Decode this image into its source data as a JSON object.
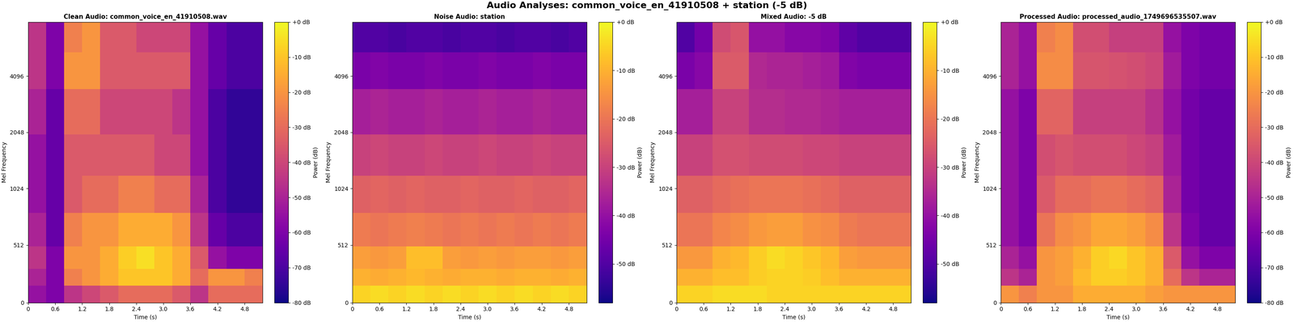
{
  "title": "Audio Analyses: common_voice_en_41910508 + station (-5 dB)",
  "chart_data": [
    {
      "type": "spectrogram",
      "title": "Clean Audio: common_voice_en_41910508.wav",
      "x_label": "Time (s)",
      "y_label": "Mel Frequency",
      "log": "y",
      "xlim": [
        0,
        5.2
      ],
      "xticks": [
        0,
        0.6,
        1.2,
        1.8,
        2.4,
        3.0,
        3.6,
        4.2,
        4.8
      ],
      "ylim": [
        0,
        8000
      ],
      "yticks": [
        0,
        512,
        1024,
        2048,
        4096
      ],
      "time_edges": [
        0,
        0.4,
        0.8,
        1.2,
        1.6,
        2.0,
        2.4,
        2.8,
        3.2,
        3.6,
        4.0,
        4.4,
        4.8,
        5.2
      ],
      "freq_edges": [
        0,
        150,
        300,
        500,
        800,
        1200,
        2000,
        3500,
        5500,
        8000
      ],
      "cells": [
        [
          -55,
          -60,
          -45,
          -40,
          -35,
          -30,
          -30,
          -30,
          -35,
          -45,
          -30,
          -30,
          -30
        ],
        [
          -50,
          -60,
          -25,
          -20,
          -15,
          -10,
          -10,
          -10,
          -15,
          -30,
          -20,
          -20,
          -25
        ],
        [
          -45,
          -60,
          -20,
          -20,
          -15,
          -8,
          -5,
          -10,
          -15,
          -35,
          -55,
          -60,
          -60
        ],
        [
          -50,
          -65,
          -25,
          -20,
          -20,
          -15,
          -15,
          -15,
          -20,
          -45,
          -65,
          -70,
          -70
        ],
        [
          -55,
          -65,
          -35,
          -30,
          -30,
          -25,
          -25,
          -30,
          -30,
          -50,
          -70,
          -75,
          -75
        ],
        [
          -55,
          -65,
          -35,
          -35,
          -35,
          -35,
          -35,
          -40,
          -40,
          -55,
          -70,
          -75,
          -75
        ],
        [
          -50,
          -65,
          -30,
          -30,
          -40,
          -40,
          -40,
          -40,
          -45,
          -55,
          -70,
          -75,
          -75
        ],
        [
          -45,
          -60,
          -20,
          -20,
          -35,
          -35,
          -35,
          -35,
          -35,
          -55,
          -65,
          -70,
          -70
        ],
        [
          -45,
          -60,
          -25,
          -20,
          -35,
          -35,
          -40,
          -40,
          -40,
          -55,
          -65,
          -70,
          -70
        ]
      ],
      "colorbar_label": "Power (dB)",
      "clim": [
        -80,
        0
      ],
      "colorbar_ticks": [
        {
          "value": 0,
          "label": "+0 dB"
        },
        {
          "value": -10,
          "label": "-10 dB"
        },
        {
          "value": -20,
          "label": "-20 dB"
        },
        {
          "value": -30,
          "label": "-30 dB"
        },
        {
          "value": -40,
          "label": "-40 dB"
        },
        {
          "value": -50,
          "label": "-50 dB"
        },
        {
          "value": -60,
          "label": "-60 dB"
        },
        {
          "value": -70,
          "label": "-70 dB"
        },
        {
          "value": -80,
          "label": "-80 dB"
        }
      ]
    },
    {
      "type": "spectrogram",
      "title": "Noise Audio: station",
      "x_label": "Time (s)",
      "y_label": "Mel Frequency",
      "log": "y",
      "xlim": [
        0,
        5.2
      ],
      "xticks": [
        0,
        0.6,
        1.2,
        1.8,
        2.4,
        3.0,
        3.6,
        4.2,
        4.8
      ],
      "ylim": [
        0,
        8000
      ],
      "yticks": [
        0,
        512,
        1024,
        2048,
        4096
      ],
      "time_edges": [
        0,
        0.4,
        0.8,
        1.2,
        1.6,
        2.0,
        2.4,
        2.8,
        3.2,
        3.6,
        4.0,
        4.4,
        4.8,
        5.2
      ],
      "freq_edges": [
        0,
        150,
        300,
        500,
        800,
        1200,
        2000,
        3500,
        5500,
        8000
      ],
      "cells": [
        [
          -5,
          -4,
          -5,
          -4,
          -5,
          -4,
          -5,
          -4,
          -5,
          -4,
          -5,
          -4,
          -5
        ],
        [
          -10,
          -11,
          -10,
          -9,
          -10,
          -11,
          -10,
          -10,
          -11,
          -10,
          -10,
          -11,
          -10
        ],
        [
          -13,
          -14,
          -13,
          -8,
          -8,
          -13,
          -14,
          -13,
          -14,
          -13,
          -13,
          -14,
          -13
        ],
        [
          -19,
          -20,
          -19,
          -18,
          -19,
          -20,
          -19,
          -20,
          -19,
          -20,
          -19,
          -20,
          -19
        ],
        [
          -24,
          -23,
          -24,
          -23,
          -24,
          -24,
          -23,
          -24,
          -24,
          -23,
          -24,
          -24,
          -23
        ],
        [
          -30,
          -29,
          -30,
          -30,
          -29,
          -30,
          -30,
          -29,
          -30,
          -30,
          -29,
          -30,
          -30
        ],
        [
          -37,
          -36,
          -37,
          -37,
          -36,
          -37,
          -37,
          -36,
          -37,
          -37,
          -36,
          -37,
          -37
        ],
        [
          -44,
          -43,
          -44,
          -44,
          -43,
          -44,
          -44,
          -43,
          -44,
          -44,
          -43,
          -44,
          -44
        ],
        [
          -50,
          -50,
          -51,
          -50,
          -50,
          -51,
          -50,
          -50,
          -51,
          -50,
          -50,
          -51,
          -50
        ]
      ],
      "colorbar_label": "Power (dB)",
      "clim": [
        -58,
        0
      ],
      "colorbar_ticks": [
        {
          "value": 0,
          "label": "+0 dB"
        },
        {
          "value": -10,
          "label": "-10 dB"
        },
        {
          "value": -20,
          "label": "-20 dB"
        },
        {
          "value": -30,
          "label": "-30 dB"
        },
        {
          "value": -40,
          "label": "-40 dB"
        },
        {
          "value": -50,
          "label": "-50 dB"
        }
      ]
    },
    {
      "type": "spectrogram",
      "title": "Mixed Audio: -5 dB",
      "x_label": "Time (s)",
      "y_label": "Mel Frequency",
      "log": "y",
      "xlim": [
        0,
        5.2
      ],
      "xticks": [
        0,
        0.6,
        1.2,
        1.8,
        2.4,
        3.0,
        3.6,
        4.2,
        4.8
      ],
      "ylim": [
        0,
        8000
      ],
      "yticks": [
        0,
        512,
        1024,
        2048,
        4096
      ],
      "time_edges": [
        0,
        0.4,
        0.8,
        1.2,
        1.6,
        2.0,
        2.4,
        2.8,
        3.2,
        3.6,
        4.0,
        4.4,
        4.8,
        5.2
      ],
      "freq_edges": [
        0,
        150,
        300,
        500,
        800,
        1200,
        2000,
        3500,
        5500,
        8000
      ],
      "cells": [
        [
          -5,
          -5,
          -4,
          -4,
          -4,
          -5,
          -5,
          -5,
          -5,
          -5,
          -5,
          -5,
          -5
        ],
        [
          -10,
          -10,
          -8,
          -8,
          -6,
          -5,
          -5,
          -6,
          -8,
          -10,
          -10,
          -10,
          -10
        ],
        [
          -14,
          -14,
          -10,
          -9,
          -6,
          -4,
          -5,
          -7,
          -9,
          -13,
          -14,
          -14,
          -14
        ],
        [
          -20,
          -20,
          -17,
          -16,
          -14,
          -13,
          -13,
          -15,
          -16,
          -19,
          -20,
          -20,
          -20
        ],
        [
          -24,
          -24,
          -22,
          -21,
          -20,
          -20,
          -20,
          -21,
          -22,
          -24,
          -24,
          -24,
          -24
        ],
        [
          -30,
          -30,
          -27,
          -27,
          -28,
          -28,
          -28,
          -29,
          -29,
          -30,
          -30,
          -30,
          -30
        ],
        [
          -37,
          -37,
          -30,
          -30,
          -34,
          -34,
          -35,
          -35,
          -36,
          -37,
          -37,
          -37,
          -37
        ],
        [
          -44,
          -42,
          -25,
          -25,
          -35,
          -36,
          -36,
          -37,
          -38,
          -43,
          -44,
          -44,
          -44
        ],
        [
          -50,
          -45,
          -28,
          -26,
          -40,
          -40,
          -42,
          -42,
          -43,
          -48,
          -50,
          -50,
          -50
        ]
      ],
      "colorbar_label": "Power (dB)",
      "clim": [
        -58,
        0
      ],
      "colorbar_ticks": [
        {
          "value": 0,
          "label": "+0 dB"
        },
        {
          "value": -10,
          "label": "-10 dB"
        },
        {
          "value": -20,
          "label": "-20 dB"
        },
        {
          "value": -30,
          "label": "-30 dB"
        },
        {
          "value": -40,
          "label": "-40 dB"
        },
        {
          "value": -50,
          "label": "-50 dB"
        }
      ]
    },
    {
      "type": "spectrogram",
      "title": "Processed Audio: processed_audio_1749696535507.wav",
      "x_label": "Time (s)",
      "y_label": "Mel Frequency",
      "log": "y",
      "xlim": [
        0,
        5.2
      ],
      "xticks": [
        0,
        0.6,
        1.2,
        1.8,
        2.4,
        3.0,
        3.6,
        4.2,
        4.8
      ],
      "ylim": [
        0,
        8000
      ],
      "yticks": [
        0,
        512,
        1024,
        2048,
        4096
      ],
      "time_edges": [
        0,
        0.4,
        0.8,
        1.2,
        1.6,
        2.0,
        2.4,
        2.8,
        3.2,
        3.6,
        4.0,
        4.4,
        4.8,
        5.2
      ],
      "freq_edges": [
        0,
        150,
        300,
        500,
        800,
        1200,
        2000,
        3500,
        5500,
        8000
      ],
      "cells": [
        [
          -20,
          -25,
          -20,
          -20,
          -15,
          -15,
          -15,
          -15,
          -18,
          -20,
          -20,
          -20,
          -20
        ],
        [
          -45,
          -50,
          -20,
          -18,
          -12,
          -8,
          -8,
          -10,
          -14,
          -30,
          -45,
          -50,
          -50
        ],
        [
          -50,
          -55,
          -20,
          -18,
          -14,
          -8,
          -6,
          -10,
          -14,
          -35,
          -55,
          -60,
          -60
        ],
        [
          -55,
          -60,
          -28,
          -22,
          -20,
          -16,
          -16,
          -18,
          -22,
          -45,
          -60,
          -65,
          -65
        ],
        [
          -55,
          -60,
          -35,
          -30,
          -30,
          -28,
          -28,
          -30,
          -32,
          -50,
          -62,
          -65,
          -65
        ],
        [
          -55,
          -60,
          -38,
          -36,
          -38,
          -38,
          -38,
          -40,
          -42,
          -52,
          -62,
          -65,
          -65
        ],
        [
          -55,
          -60,
          -32,
          -32,
          -42,
          -42,
          -42,
          -42,
          -46,
          -55,
          -62,
          -65,
          -65
        ],
        [
          -50,
          -55,
          -22,
          -22,
          -36,
          -36,
          -37,
          -38,
          -40,
          -52,
          -60,
          -62,
          -62
        ],
        [
          -50,
          -55,
          -25,
          -22,
          -38,
          -38,
          -42,
          -42,
          -42,
          -55,
          -60,
          -62,
          -62
        ]
      ],
      "colorbar_label": "Power (dB)",
      "clim": [
        -80,
        0
      ],
      "colorbar_ticks": [
        {
          "value": 0,
          "label": "+0 dB"
        },
        {
          "value": -10,
          "label": "-10 dB"
        },
        {
          "value": -20,
          "label": "-20 dB"
        },
        {
          "value": -30,
          "label": "-30 dB"
        },
        {
          "value": -40,
          "label": "-40 dB"
        },
        {
          "value": -50,
          "label": "-50 dB"
        },
        {
          "value": -60,
          "label": "-60 dB"
        },
        {
          "value": -70,
          "label": "-70 dB"
        },
        {
          "value": -80,
          "label": "-80 dB"
        }
      ]
    }
  ]
}
